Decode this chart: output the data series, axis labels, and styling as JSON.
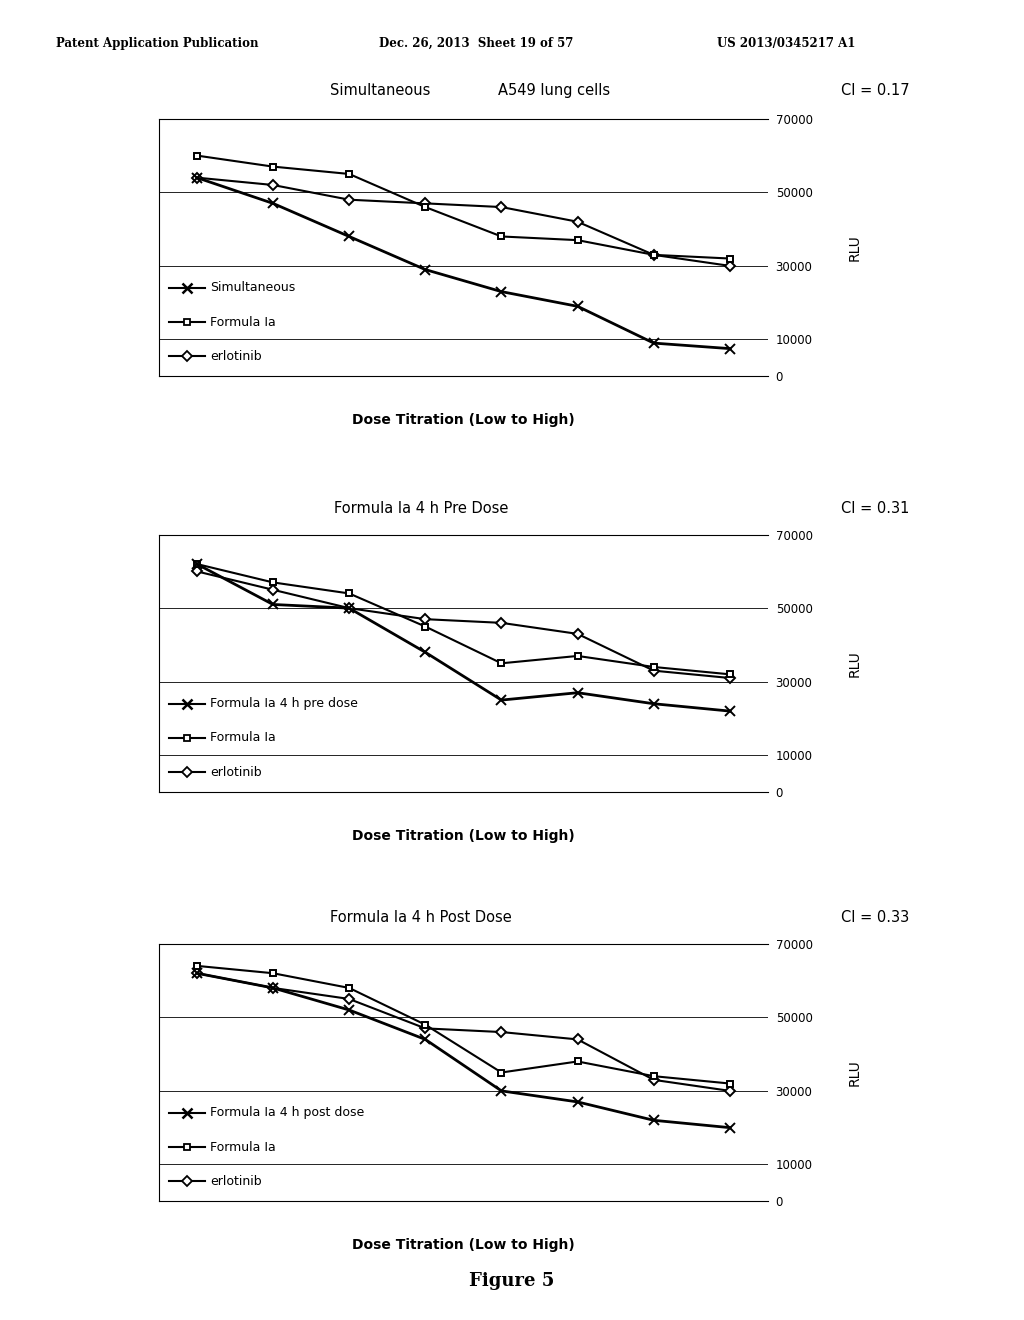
{
  "header_left": "Patent Application Publication",
  "header_center": "Dec. 26, 2013  Sheet 19 of 57",
  "header_right": "US 2013/0345217 A1",
  "figure_label": "Figure 5",
  "background_color": "#ffffff",
  "charts": [
    {
      "title": "Simultaneous",
      "subtitle": "A549 lung cells",
      "ci_label": "CI = 0.17",
      "xlabel": "Dose Titration (Low to High)",
      "ylabel": "RLU",
      "ylim": [
        0,
        70000
      ],
      "yticks": [
        0,
        10000,
        30000,
        50000,
        70000
      ],
      "x": [
        1,
        2,
        3,
        4,
        5,
        6,
        7,
        8
      ],
      "series": [
        {
          "name": "erlotinib",
          "marker": "D",
          "y": [
            54000,
            52000,
            48000,
            47000,
            46000,
            42000,
            33000,
            30000
          ],
          "linewidth": 1.5,
          "markersize": 5
        },
        {
          "name": "Formula Ia",
          "marker": "s",
          "y": [
            60000,
            57000,
            55000,
            46000,
            38000,
            37000,
            33000,
            32000
          ],
          "linewidth": 1.5,
          "markersize": 5
        },
        {
          "name": "Simultaneous",
          "marker": "x",
          "y": [
            54000,
            47000,
            38000,
            29000,
            23000,
            19000,
            9000,
            7500
          ],
          "linewidth": 2.0,
          "markersize": 7
        }
      ],
      "legend_entries": [
        "erlotinib",
        "Formula Ia",
        "Simultaneous"
      ]
    },
    {
      "title": "Formula Ia 4 h Pre Dose",
      "subtitle": "",
      "ci_label": "CI = 0.31",
      "xlabel": "Dose Titration (Low to High)",
      "ylabel": "RLU",
      "ylim": [
        0,
        70000
      ],
      "yticks": [
        0,
        10000,
        30000,
        50000,
        70000
      ],
      "x": [
        1,
        2,
        3,
        4,
        5,
        6,
        7,
        8
      ],
      "series": [
        {
          "name": "erlotinib",
          "marker": "D",
          "y": [
            60000,
            55000,
            50000,
            47000,
            46000,
            43000,
            33000,
            31000
          ],
          "linewidth": 1.5,
          "markersize": 5
        },
        {
          "name": "Formula Ia",
          "marker": "s",
          "y": [
            62000,
            57000,
            54000,
            45000,
            35000,
            37000,
            34000,
            32000
          ],
          "linewidth": 1.5,
          "markersize": 5
        },
        {
          "name": "Formula Ia 4 h pre dose",
          "marker": "x",
          "y": [
            62000,
            51000,
            50000,
            38000,
            25000,
            27000,
            24000,
            22000
          ],
          "linewidth": 2.0,
          "markersize": 7
        }
      ],
      "legend_entries": [
        "erlotinib",
        "Formula Ia",
        "Formula Ia 4 h pre dose"
      ]
    },
    {
      "title": "Formula Ia 4 h Post Dose",
      "subtitle": "",
      "ci_label": "CI = 0.33",
      "xlabel": "Dose Titration (Low to High)",
      "ylabel": "RLU",
      "ylim": [
        0,
        70000
      ],
      "yticks": [
        0,
        10000,
        30000,
        50000,
        70000
      ],
      "x": [
        1,
        2,
        3,
        4,
        5,
        6,
        7,
        8
      ],
      "series": [
        {
          "name": "erlotinib",
          "marker": "D",
          "y": [
            62000,
            58000,
            55000,
            47000,
            46000,
            44000,
            33000,
            30000
          ],
          "linewidth": 1.5,
          "markersize": 5
        },
        {
          "name": "Formula Ia",
          "marker": "s",
          "y": [
            64000,
            62000,
            58000,
            48000,
            35000,
            38000,
            34000,
            32000
          ],
          "linewidth": 1.5,
          "markersize": 5
        },
        {
          "name": "Formula Ia 4 h post dose",
          "marker": "x",
          "y": [
            62000,
            58000,
            52000,
            44000,
            30000,
            27000,
            22000,
            20000
          ],
          "linewidth": 2.0,
          "markersize": 7
        }
      ],
      "legend_entries": [
        "erlotinib",
        "Formula Ia",
        "Formula Ia 4 h post dose"
      ]
    }
  ]
}
